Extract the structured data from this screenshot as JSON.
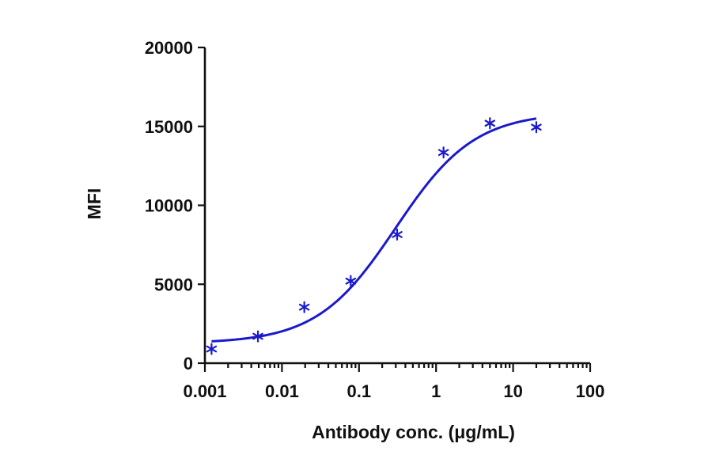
{
  "chart_data": {
    "type": "scatter",
    "xlabel": "Antibody conc. (μg/mL)",
    "ylabel": "MFI",
    "x_scale": "log",
    "xlim": [
      0.001,
      100
    ],
    "ylim": [
      0,
      20000
    ],
    "x_ticks": [
      0.001,
      0.01,
      0.1,
      1,
      10,
      100
    ],
    "x_tick_labels": [
      "0.001",
      "0.01",
      "0.1",
      "1",
      "10",
      "100"
    ],
    "y_ticks": [
      0,
      5000,
      10000,
      15000,
      20000
    ],
    "y_tick_labels": [
      "0",
      "5000",
      "10000",
      "15000",
      "20000"
    ],
    "grid": false,
    "series": [
      {
        "marker": "asterisk",
        "color": "#1a1acc",
        "x": [
          0.00122,
          0.00488,
          0.0195,
          0.0781,
          0.3125,
          1.25,
          5,
          20
        ],
        "y": [
          900,
          1700,
          3550,
          5200,
          8150,
          13350,
          15200,
          14950
        ]
      }
    ],
    "fit_curve": {
      "model": "4PL",
      "color": "#1a1acc",
      "bottom": 1250,
      "top": 15900,
      "ec50": 0.3,
      "hill": 0.85,
      "x_range": [
        0.00122,
        20
      ]
    }
  }
}
